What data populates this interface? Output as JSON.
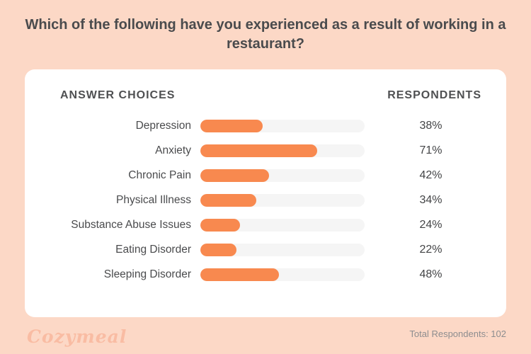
{
  "title": "Which of the following have you experienced as a result of working in a restaurant?",
  "table_headers": {
    "answers": "ANSWER CHOICES",
    "respondents": "RESPONDENTS"
  },
  "chart_data": {
    "type": "bar",
    "orientation": "horizontal",
    "title": "Which of the following have you experienced as a result of working in a restaurant?",
    "categories": [
      "Depression",
      "Anxiety",
      "Chronic Pain",
      "Physical Illness",
      "Substance Abuse Issues",
      "Eating Disorder",
      "Sleeping Disorder"
    ],
    "values": [
      38,
      71,
      42,
      34,
      24,
      22,
      48
    ],
    "value_suffix": "%",
    "xlim": [
      0,
      100
    ],
    "grid": false,
    "legend": false
  },
  "footer": {
    "logo": "Cozymeal",
    "total": "Total Respondents: 102"
  },
  "colors": {
    "background": "#FCD8C6",
    "card": "#FFFFFF",
    "bar": "#F8894F",
    "bar_track": "#F5F5F5",
    "text": "#4A4B4D",
    "muted_text": "#8D8D8F",
    "logo": "#F9BCA3"
  }
}
